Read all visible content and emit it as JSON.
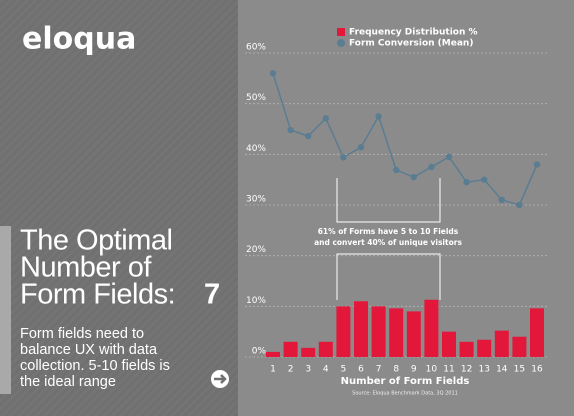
{
  "panel": {
    "logo": "eloqua",
    "title_lines": [
      "The Optimal",
      "Number of",
      "Form Fields:"
    ],
    "title_number": "7",
    "subtitle_lines": [
      "Form fields need to",
      "balance UX with data",
      "collection. 5-10 fields is",
      "the ideal range"
    ]
  },
  "chart_data": {
    "type": "bar_line",
    "categories": [
      "1",
      "2",
      "3",
      "4",
      "5",
      "6",
      "7",
      "8",
      "9",
      "10",
      "11",
      "12",
      "13",
      "14",
      "15",
      "16"
    ],
    "series": [
      {
        "name": "Frequency Distribution %",
        "type": "bar",
        "color": "#e3173a",
        "values": [
          1,
          3,
          1.8,
          3,
          10,
          11,
          10,
          9.6,
          9,
          11.3,
          5,
          3,
          3.4,
          5.2,
          4,
          9.6
        ]
      },
      {
        "name": "Form Conversion (Mean)",
        "type": "line",
        "color": "#5a7d92",
        "values": [
          56,
          44.8,
          43.6,
          47.1,
          39.4,
          41.4,
          47.5,
          36.9,
          35.5,
          37.5,
          39.5,
          34.5,
          35,
          31,
          30,
          38
        ]
      }
    ],
    "ylim": [
      0,
      60
    ],
    "yticks": [
      {
        "value": 0,
        "label": "0%"
      },
      {
        "value": 10,
        "label": "10%"
      },
      {
        "value": 20,
        "label": "20%"
      },
      {
        "value": 30,
        "label": "30%"
      },
      {
        "value": 40,
        "label": "40%"
      },
      {
        "value": 50,
        "label": "50%"
      },
      {
        "value": 60,
        "label": "60%"
      }
    ],
    "grid": true,
    "xlabel": "Number of Form Fields",
    "annotation_lines": [
      "61% of Forms have 5 to 10 Fields",
      "and convert 40% of unique visitors"
    ],
    "source": "Source: Eloqua Benchmark Data, 3Q 2011"
  }
}
